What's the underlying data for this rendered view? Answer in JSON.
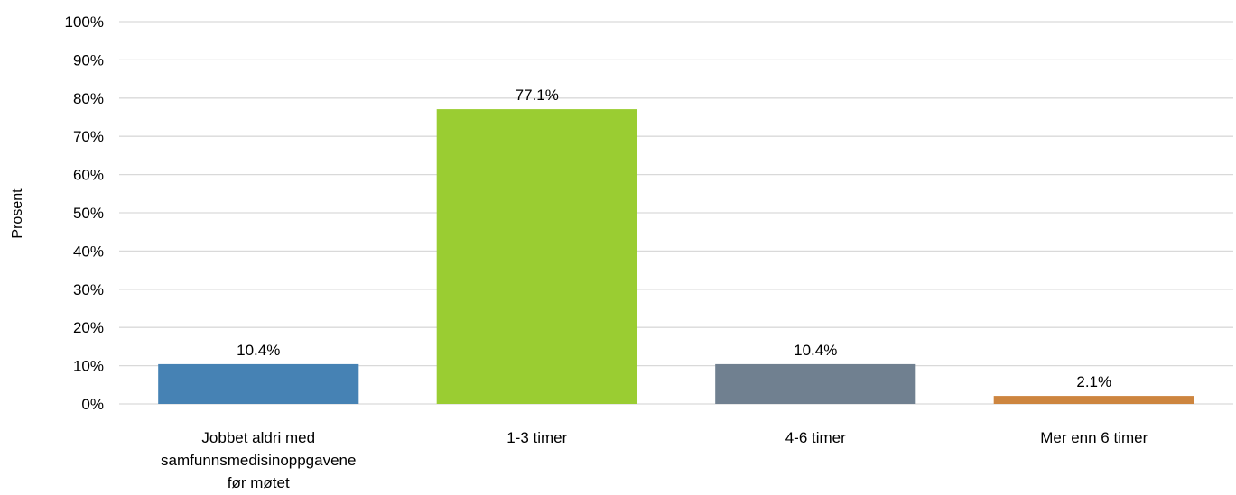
{
  "chart_data": {
    "type": "bar",
    "title": "",
    "xlabel": "",
    "ylabel": "Prosent",
    "ylim": [
      0,
      100
    ],
    "y_ticks": [
      "0%",
      "10%",
      "20%",
      "30%",
      "40%",
      "50%",
      "60%",
      "70%",
      "80%",
      "90%",
      "100%"
    ],
    "grid": true,
    "categories": [
      [
        "Jobbet aldri med",
        "samfunnsmedisinoppgavene",
        "før møtet"
      ],
      [
        "1-3 timer"
      ],
      [
        "4-6 timer"
      ],
      [
        "Mer enn 6 timer"
      ]
    ],
    "values": [
      10.4,
      77.1,
      10.4,
      2.1
    ],
    "data_labels": [
      "10.4%",
      "77.1%",
      "10.4%",
      "2.1%"
    ],
    "bar_colors": [
      "#4682B4",
      "#9ACD32",
      "#708090",
      "#CD853F"
    ]
  }
}
